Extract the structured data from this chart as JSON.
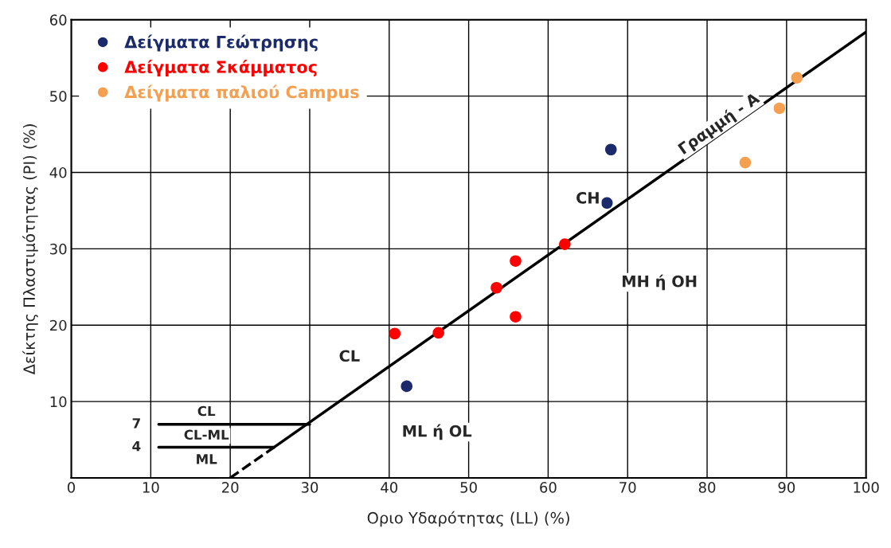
{
  "chart_data": {
    "type": "scatter",
    "xlabel": "Οριο Υδαρότητας (LL) (%)",
    "ylabel": "Δείκτης Πλαστιμότητας (PI) (%)",
    "xlim": [
      0,
      100
    ],
    "ylim": [
      0,
      60
    ],
    "xticks": [
      0,
      10,
      20,
      30,
      40,
      50,
      60,
      70,
      80,
      90,
      100
    ],
    "yticks": [
      {
        "value": 0,
        "label": null
      },
      10,
      20,
      30,
      40,
      50,
      60
    ],
    "grid": true,
    "legend": "top left",
    "marker": "circle",
    "series": [
      {
        "name": "Δείγματα Γεώτρησης",
        "color": "#1b2a6b",
        "x": [
          67.9,
          67.4,
          42.2
        ],
        "values": [
          43.0,
          36.0,
          12.0
        ]
      },
      {
        "name": "Δείγματα Σκάμματος",
        "color": "#ff0000",
        "x": [
          40.7,
          46.2,
          53.5,
          55.9,
          55.9,
          62.1
        ],
        "values": [
          18.9,
          19.0,
          24.9,
          28.4,
          21.1,
          30.6
        ]
      },
      {
        "name": "Δείγματα παλιού Campus",
        "color": "#f4a050",
        "x": [
          91.3,
          89.1,
          84.8
        ],
        "values": [
          52.4,
          48.4,
          41.3
        ]
      },
      {
        "type": "line",
        "color": "#000000",
        "marker": "none",
        "line_style": "solid",
        "x": [
          25.5,
          100
        ],
        "values": [
          4,
          58.4
        ]
      },
      {
        "type": "line",
        "color": "#000000",
        "marker": "none",
        "line_style": "dashed",
        "x": [
          20,
          25.5
        ],
        "values": [
          0,
          4
        ]
      },
      {
        "type": "line",
        "color": "#000000",
        "marker": "none",
        "line_style": "solid",
        "x": [
          11,
          30
        ],
        "values": [
          7,
          7
        ]
      },
      {
        "type": "line",
        "color": "#000000",
        "marker": "none",
        "line_style": "solid",
        "x": [
          11,
          25.5
        ],
        "values": [
          4,
          4
        ]
      }
    ],
    "annotations": [
      "Γραμμή - A",
      "CH",
      "MH ή OH",
      "CL",
      "ML ή OL",
      "CL",
      "CL-ML",
      "ML",
      "7",
      "4"
    ]
  }
}
